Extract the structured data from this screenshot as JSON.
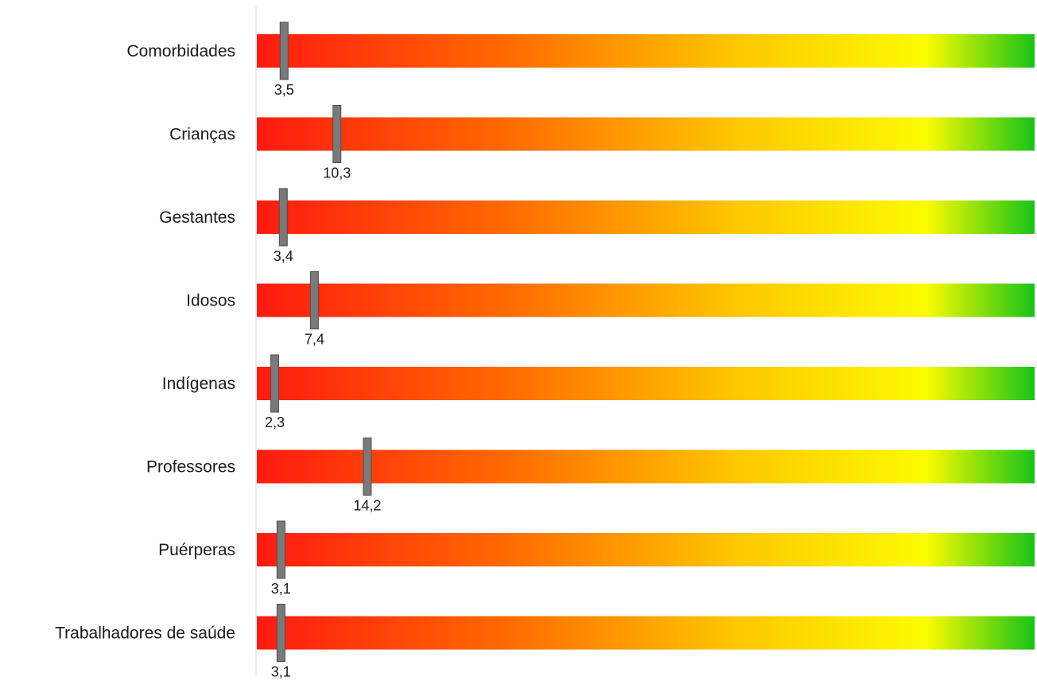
{
  "chart_data": {
    "type": "bar",
    "categories": [
      "Comorbidades",
      "Crianças",
      "Gestantes",
      "Idosos",
      "Indígenas",
      "Professores",
      "Puérperas",
      "Trabalhadores de saúde"
    ],
    "values": [
      3.5,
      10.3,
      3.4,
      7.4,
      2.3,
      14.2,
      3.1,
      3.1
    ],
    "value_labels": [
      "3,5",
      "10,3",
      "3,4",
      "7,4",
      "2,3",
      "14,2",
      "3,1",
      "3,1"
    ],
    "xlim": [
      0,
      100
    ],
    "title": "",
    "xlabel": "",
    "ylabel": "",
    "grid": false,
    "legend": "none",
    "gradient_colors": [
      "#ff1a10",
      "#ff6a00",
      "#ffc800",
      "#fbfb00",
      "#18c418"
    ],
    "marker_color": "#7a7a7a",
    "marker_border_color": "#4d4d4d",
    "axis_color": "#d9d9d9"
  }
}
